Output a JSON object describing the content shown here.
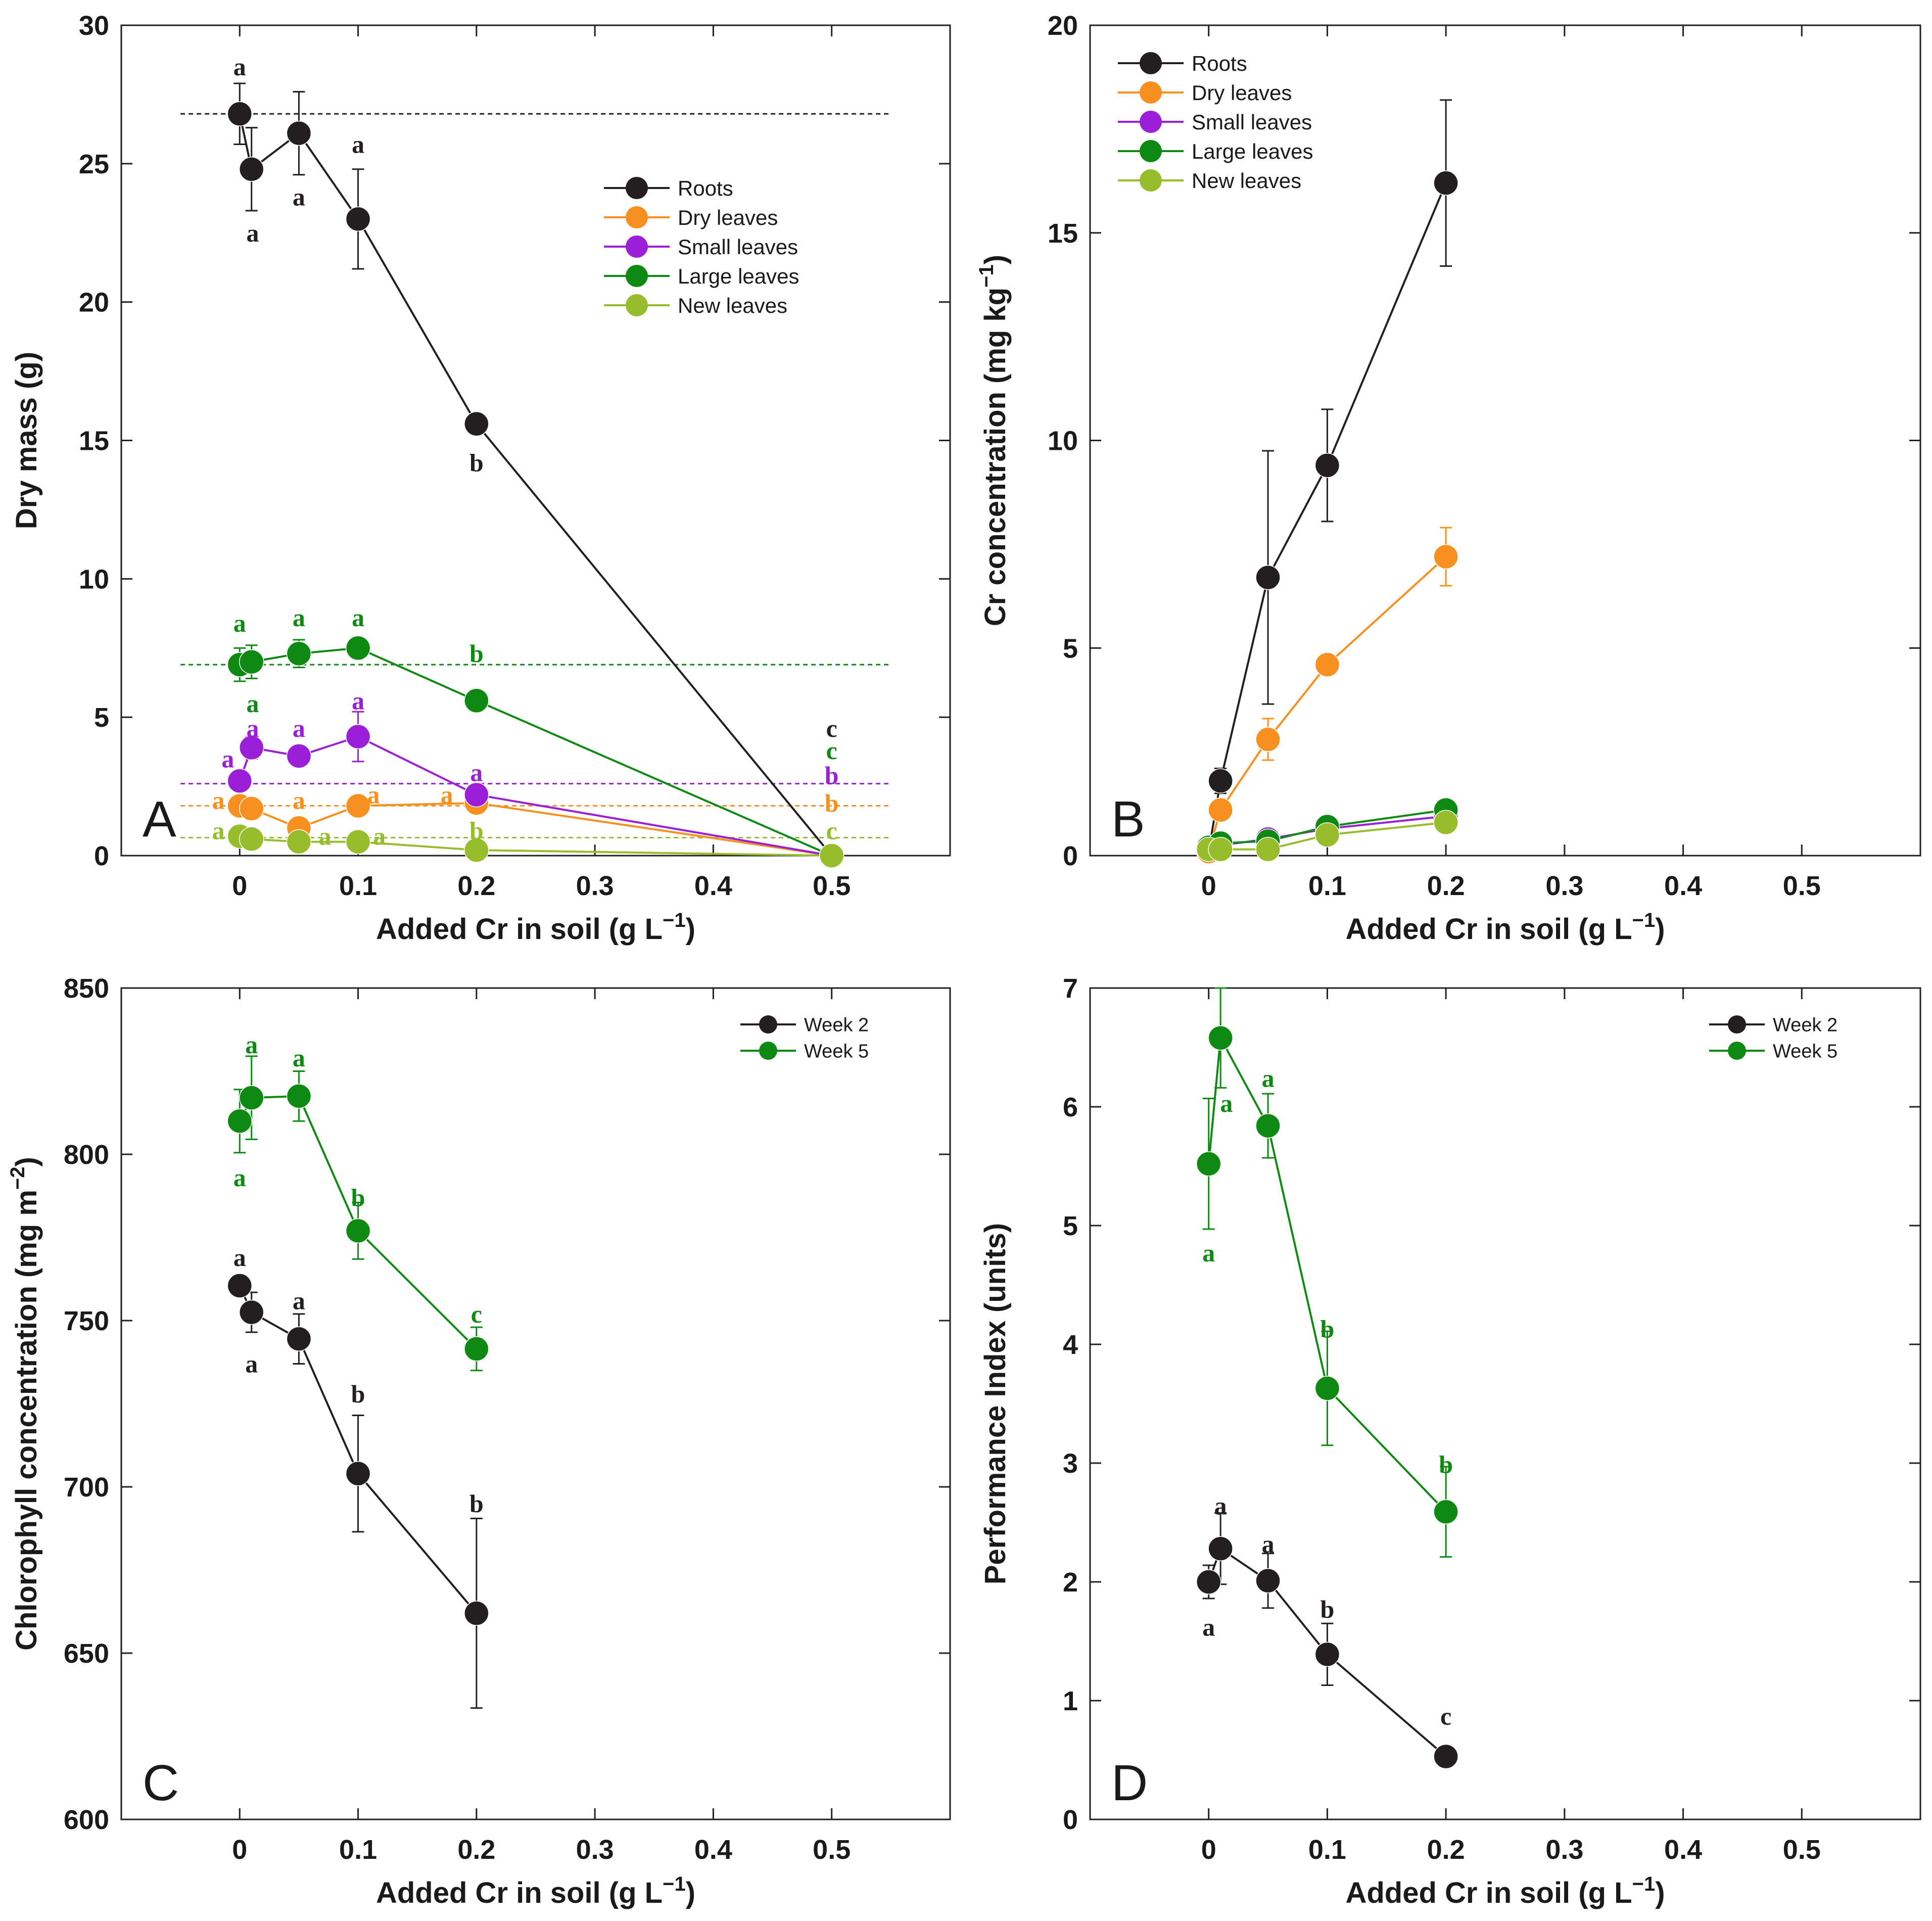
{
  "colors": {
    "black": "#231f20",
    "orange": "#f7901e",
    "purple": "#9b1fd6",
    "green": "#0e8a13",
    "lightgreen": "#98bd2c"
  },
  "chart_data": [
    {
      "id": "A",
      "type": "line",
      "panel_letter": "A",
      "xlabel": "Added Cr in soil (g L",
      "xlabel_sup": "−1",
      "xlabel_suffix": ")",
      "ylabel": "Dry mass (g)",
      "xlim": [
        -0.1,
        0.6
      ],
      "ylim": [
        0,
        30
      ],
      "xticks": [
        0,
        0.1,
        0.2,
        0.3,
        0.4,
        0.5
      ],
      "xtick_labels": [
        "0",
        "0.1",
        "0.2",
        "0.3",
        "0.4",
        "0.5"
      ],
      "yticks": [
        0,
        5,
        10,
        15,
        20,
        25,
        30
      ],
      "ytick_labels": [
        "0",
        "5",
        "10",
        "15",
        "20",
        "25",
        "30"
      ],
      "legend_position": "upper-middle",
      "series": [
        {
          "name": "Roots",
          "color": "black",
          "x": [
            0,
            0.01,
            0.05,
            0.1,
            0.2,
            0.5
          ],
          "y": [
            26.8,
            24.8,
            26.1,
            23.0,
            15.6,
            0.0
          ],
          "err": [
            1.1,
            1.5,
            1.5,
            1.8,
            0,
            0
          ]
        },
        {
          "name": "Dry leaves",
          "color": "orange",
          "x": [
            0,
            0.01,
            0.05,
            0.1,
            0.2,
            0.5
          ],
          "y": [
            1.8,
            1.7,
            1.0,
            1.8,
            1.9,
            0.0
          ],
          "err": [
            0,
            0,
            0,
            0,
            0,
            0
          ]
        },
        {
          "name": "Small leaves",
          "color": "purple",
          "x": [
            0,
            0.01,
            0.05,
            0.1,
            0.2,
            0.5
          ],
          "y": [
            2.7,
            3.9,
            3.6,
            4.3,
            2.2,
            0.0
          ],
          "err": [
            0,
            0.4,
            0,
            0.9,
            0,
            0
          ]
        },
        {
          "name": "Large leaves",
          "color": "green",
          "x": [
            0,
            0.01,
            0.05,
            0.1,
            0.2,
            0.5
          ],
          "y": [
            6.9,
            7.0,
            7.3,
            7.5,
            5.6,
            0.0
          ],
          "err": [
            0.6,
            0.6,
            0.5,
            0,
            0,
            0
          ]
        },
        {
          "name": "New leaves",
          "color": "lightgreen",
          "x": [
            0,
            0.01,
            0.05,
            0.1,
            0.2,
            0.5
          ],
          "y": [
            0.7,
            0.6,
            0.5,
            0.5,
            0.2,
            0.0
          ],
          "err": [
            0,
            0,
            0,
            0,
            0,
            0
          ]
        }
      ],
      "reference_lines": [
        {
          "color": "black",
          "y": 26.8,
          "x_from": -0.05,
          "x_to": 0.55
        },
        {
          "color": "green",
          "y": 6.9,
          "x_from": -0.05,
          "x_to": 0.55
        },
        {
          "color": "purple",
          "y": 2.6,
          "x_from": -0.05,
          "x_to": 0.55
        },
        {
          "color": "orange",
          "y": 1.8,
          "x_from": -0.05,
          "x_to": 0.55
        },
        {
          "color": "lightgreen",
          "y": 0.65,
          "x_from": -0.05,
          "x_to": 0.55
        }
      ],
      "annotations": [
        {
          "text": "a",
          "color": "black",
          "x": 0,
          "y": 28.5
        },
        {
          "text": "a",
          "color": "black",
          "x": 0.011,
          "y": 22.5
        },
        {
          "text": "a",
          "color": "black",
          "x": 0.05,
          "y": 23.8
        },
        {
          "text": "a",
          "color": "black",
          "x": 0.1,
          "y": 25.7
        },
        {
          "text": "b",
          "color": "black",
          "x": 0.2,
          "y": 14.2
        },
        {
          "text": "c",
          "color": "black",
          "x": 0.5,
          "y": 4.6
        },
        {
          "text": "a",
          "color": "green",
          "x": 0,
          "y": 8.4
        },
        {
          "text": "a",
          "color": "green",
          "x": 0.05,
          "y": 8.6
        },
        {
          "text": "a",
          "color": "green",
          "x": 0.1,
          "y": 8.6
        },
        {
          "text": "b",
          "color": "green",
          "x": 0.2,
          "y": 7.3
        },
        {
          "text": "a",
          "color": "green",
          "x": 0.011,
          "y": 5.5
        },
        {
          "text": "c",
          "color": "green",
          "x": 0.5,
          "y": 3.8
        },
        {
          "text": "a",
          "color": "purple",
          "x": 0.011,
          "y": 4.6
        },
        {
          "text": "a",
          "color": "purple",
          "x": 0.05,
          "y": 4.6
        },
        {
          "text": "a",
          "color": "purple",
          "x": 0.1,
          "y": 5.6
        },
        {
          "text": "a",
          "color": "purple",
          "x": -0.01,
          "y": 3.5
        },
        {
          "text": "a",
          "color": "purple",
          "x": 0.2,
          "y": 3.0
        },
        {
          "text": "b",
          "color": "purple",
          "x": 0.5,
          "y": 2.9
        },
        {
          "text": "a",
          "color": "orange",
          "x": -0.018,
          "y": 2.0
        },
        {
          "text": "a",
          "color": "orange",
          "x": 0.05,
          "y": 2.0
        },
        {
          "text": "a",
          "color": "orange",
          "x": 0.113,
          "y": 2.2
        },
        {
          "text": "a",
          "color": "orange",
          "x": 0.175,
          "y": 2.2
        },
        {
          "text": "b",
          "color": "orange",
          "x": 0.5,
          "y": 1.9
        },
        {
          "text": "a",
          "color": "lightgreen",
          "x": -0.018,
          "y": 0.9
        },
        {
          "text": "a",
          "color": "lightgreen",
          "x": 0.072,
          "y": 0.7
        },
        {
          "text": "a",
          "color": "lightgreen",
          "x": 0.118,
          "y": 0.7
        },
        {
          "text": "b",
          "color": "lightgreen",
          "x": 0.2,
          "y": 0.9
        },
        {
          "text": "c",
          "color": "lightgreen",
          "x": 0.5,
          "y": 0.9
        }
      ]
    },
    {
      "id": "B",
      "type": "line",
      "panel_letter": "B",
      "xlabel": "Added Cr in soil (g L",
      "xlabel_sup": "−1",
      "xlabel_suffix": ")",
      "ylabel": "Cr concentration (mg kg",
      "ylabel_sup": "−1",
      "ylabel_suffix": ")",
      "xlim": [
        -0.1,
        0.6
      ],
      "ylim": [
        0,
        20
      ],
      "xticks": [
        0,
        0.1,
        0.2,
        0.3,
        0.4,
        0.5
      ],
      "xtick_labels": [
        "0",
        "0.1",
        "0.2",
        "0.3",
        "0.4",
        "0.5"
      ],
      "yticks": [
        0,
        5,
        10,
        15,
        20
      ],
      "ytick_labels": [
        "0",
        "5",
        "10",
        "15",
        "20"
      ],
      "legend_position": "top-left",
      "series": [
        {
          "name": "Roots",
          "color": "black",
          "x": [
            0,
            0.01,
            0.05,
            0.1,
            0.2
          ],
          "y": [
            0.1,
            1.8,
            6.7,
            9.4,
            16.2
          ],
          "err": [
            0,
            0.3,
            3.05,
            1.35,
            2.0
          ]
        },
        {
          "name": "Dry leaves",
          "color": "orange",
          "x": [
            0,
            0.01,
            0.05,
            0.1,
            0.2
          ],
          "y": [
            0.1,
            1.1,
            2.8,
            4.6,
            7.2
          ],
          "err": [
            0,
            0,
            0.5,
            0,
            0.7
          ]
        },
        {
          "name": "Small leaves",
          "color": "purple",
          "x": [
            0,
            0.01,
            0.05,
            0.1,
            0.2
          ],
          "y": [
            0.2,
            0.25,
            0.4,
            0.65,
            0.95
          ],
          "err": [
            0,
            0,
            0,
            0,
            0
          ]
        },
        {
          "name": "Large leaves",
          "color": "green",
          "x": [
            0,
            0.01,
            0.05,
            0.1,
            0.2
          ],
          "y": [
            0.2,
            0.3,
            0.35,
            0.7,
            1.1
          ],
          "err": [
            0,
            0,
            0,
            0,
            0
          ]
        },
        {
          "name": "New leaves",
          "color": "lightgreen",
          "x": [
            0,
            0.01,
            0.05,
            0.1,
            0.2
          ],
          "y": [
            0.15,
            0.15,
            0.15,
            0.5,
            0.8
          ],
          "err": [
            0,
            0,
            0,
            0,
            0
          ]
        }
      ],
      "reference_lines": [],
      "annotations": []
    },
    {
      "id": "C",
      "type": "line",
      "panel_letter": "C",
      "xlabel": "Added Cr in soil (g L",
      "xlabel_sup": "−1",
      "xlabel_suffix": ")",
      "ylabel": "Chlorophyll concentration (mg m",
      "ylabel_sup": "−2",
      "ylabel_suffix": ")",
      "xlim": [
        -0.1,
        0.6
      ],
      "ylim": [
        600,
        850
      ],
      "xticks": [
        0,
        0.1,
        0.2,
        0.3,
        0.4,
        0.5
      ],
      "xtick_labels": [
        "0",
        "0.1",
        "0.2",
        "0.3",
        "0.4",
        "0.5"
      ],
      "yticks": [
        600,
        650,
        700,
        750,
        800,
        850
      ],
      "ytick_labels": [
        "600",
        "650",
        "700",
        "750",
        "800",
        "850"
      ],
      "legend_position": "top-right",
      "series": [
        {
          "name": "Week 2",
          "color": "black",
          "x": [
            0,
            0.01,
            0.05,
            0.1,
            0.2
          ],
          "y": [
            760.5,
            752.5,
            744.5,
            704,
            662
          ],
          "err": [
            0,
            6,
            7.5,
            17.5,
            28.5
          ]
        },
        {
          "name": "Week 5",
          "color": "green",
          "x": [
            0,
            0.01,
            0.05,
            0.1,
            0.2
          ],
          "y": [
            810,
            817,
            817.5,
            777,
            741.5
          ],
          "err": [
            9.5,
            12.5,
            7.5,
            8.5,
            6.5
          ]
        }
      ],
      "reference_lines": [],
      "annotations": [
        {
          "text": "a",
          "color": "green",
          "x": 0.01,
          "y": 833
        },
        {
          "text": "a",
          "color": "green",
          "x": 0.05,
          "y": 829
        },
        {
          "text": "a",
          "color": "green",
          "x": 0,
          "y": 793
        },
        {
          "text": "b",
          "color": "green",
          "x": 0.1,
          "y": 787
        },
        {
          "text": "c",
          "color": "green",
          "x": 0.2,
          "y": 752
        },
        {
          "text": "a",
          "color": "black",
          "x": 0,
          "y": 769
        },
        {
          "text": "a",
          "color": "black",
          "x": 0.05,
          "y": 756
        },
        {
          "text": "a",
          "color": "black",
          "x": 0.01,
          "y": 737
        },
        {
          "text": "b",
          "color": "black",
          "x": 0.1,
          "y": 728
        },
        {
          "text": "b",
          "color": "black",
          "x": 0.2,
          "y": 695
        }
      ]
    },
    {
      "id": "D",
      "type": "line",
      "panel_letter": "D",
      "xlabel": "Added Cr in soil (g L",
      "xlabel_sup": "−1",
      "xlabel_suffix": ")",
      "ylabel": "Performance Index (units)",
      "xlim": [
        -0.1,
        0.6
      ],
      "ylim": [
        0,
        7
      ],
      "xticks": [
        0,
        0.1,
        0.2,
        0.3,
        0.4,
        0.5
      ],
      "xtick_labels": [
        "0",
        "0.1",
        "0.2",
        "0.3",
        "0.4",
        "0.5"
      ],
      "yticks": [
        0,
        1,
        2,
        3,
        4,
        5,
        6,
        7
      ],
      "ytick_labels": [
        "0",
        "1",
        "2",
        "3",
        "4",
        "5",
        "6",
        "7"
      ],
      "legend_position": "top-right",
      "series": [
        {
          "name": "Week 2",
          "color": "black",
          "x": [
            0,
            0.01,
            0.05,
            0.1,
            0.2
          ],
          "y": [
            2.0,
            2.28,
            2.01,
            1.39,
            0.53
          ],
          "err": [
            0.14,
            0.3,
            0.23,
            0.26,
            0
          ]
        },
        {
          "name": "Week 5",
          "color": "green",
          "x": [
            0,
            0.01,
            0.05,
            0.1,
            0.2
          ],
          "y": [
            5.52,
            6.58,
            5.84,
            3.63,
            2.59
          ],
          "err": [
            0.55,
            0.42,
            0.27,
            0.48,
            0.38
          ]
        }
      ],
      "reference_lines": [],
      "annotations": [
        {
          "text": "a",
          "color": "green",
          "x": 0.015,
          "y": 6.03
        },
        {
          "text": "a",
          "color": "green",
          "x": 0.05,
          "y": 6.24
        },
        {
          "text": "a",
          "color": "green",
          "x": 0,
          "y": 4.77
        },
        {
          "text": "b",
          "color": "green",
          "x": 0.1,
          "y": 4.13
        },
        {
          "text": "b",
          "color": "green",
          "x": 0.2,
          "y": 2.99
        },
        {
          "text": "a",
          "color": "black",
          "x": 0.01,
          "y": 2.64
        },
        {
          "text": "a",
          "color": "black",
          "x": 0.05,
          "y": 2.32
        },
        {
          "text": "a",
          "color": "black",
          "x": 0,
          "y": 1.62
        },
        {
          "text": "b",
          "color": "black",
          "x": 0.1,
          "y": 1.77
        },
        {
          "text": "c",
          "color": "black",
          "x": 0.2,
          "y": 0.87
        }
      ]
    }
  ]
}
